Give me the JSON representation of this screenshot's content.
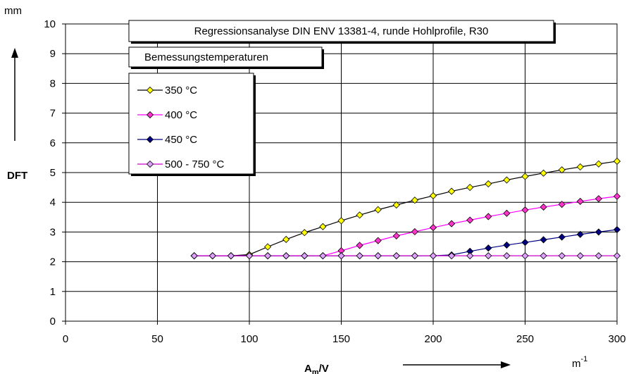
{
  "chart_data": {
    "type": "line",
    "title": "Regressionsanalyse DIN ENV 13381-4, runde Hohlprofile, R30",
    "subtitle": "Bemessungstemperaturen",
    "ylabel": "DFT",
    "y_unit": "mm",
    "xlabel_main": "A",
    "xlabel_sub": "m",
    "xlabel_suffix": "/V",
    "x_unit_base": "m",
    "x_unit_exp": "-1",
    "xlim": [
      0,
      300
    ],
    "ylim": [
      0,
      10
    ],
    "x_ticks": [
      0,
      50,
      100,
      150,
      200,
      250,
      300
    ],
    "y_ticks": [
      0,
      1,
      2,
      3,
      4,
      5,
      6,
      7,
      8,
      9,
      10
    ],
    "grid": true,
    "legend_position": "top-left",
    "series": [
      {
        "name": "350 °C",
        "line_color": "#000000",
        "marker_color": "#ffff00",
        "x": [
          70,
          80,
          90,
          100,
          110,
          120,
          130,
          140,
          150,
          160,
          170,
          180,
          190,
          200,
          210,
          220,
          230,
          240,
          250,
          260,
          270,
          280,
          290,
          300
        ],
        "y": [
          2.2,
          2.2,
          2.2,
          2.24,
          2.5,
          2.75,
          2.98,
          3.18,
          3.38,
          3.57,
          3.75,
          3.91,
          4.07,
          4.22,
          4.37,
          4.5,
          4.62,
          4.75,
          4.87,
          4.98,
          5.09,
          5.19,
          5.29,
          5.38
        ]
      },
      {
        "name": "400 °C",
        "line_color": "#ff00ff",
        "marker_color": "#ff33cc",
        "x": [
          70,
          80,
          90,
          100,
          110,
          120,
          130,
          140,
          150,
          160,
          170,
          180,
          190,
          200,
          210,
          220,
          230,
          240,
          250,
          260,
          270,
          280,
          290,
          300
        ],
        "y": [
          2.2,
          2.2,
          2.2,
          2.2,
          2.2,
          2.2,
          2.2,
          2.2,
          2.37,
          2.55,
          2.71,
          2.87,
          3.01,
          3.15,
          3.28,
          3.4,
          3.52,
          3.63,
          3.74,
          3.84,
          3.93,
          4.03,
          4.12,
          4.2
        ]
      },
      {
        "name": "450 °C",
        "line_color": "#000080",
        "marker_color": "#000080",
        "x": [
          70,
          80,
          90,
          100,
          110,
          120,
          130,
          140,
          150,
          160,
          170,
          180,
          190,
          200,
          210,
          220,
          230,
          240,
          250,
          260,
          270,
          280,
          290,
          300
        ],
        "y": [
          2.2,
          2.2,
          2.2,
          2.2,
          2.2,
          2.2,
          2.2,
          2.2,
          2.2,
          2.2,
          2.2,
          2.2,
          2.2,
          2.2,
          2.23,
          2.35,
          2.46,
          2.56,
          2.65,
          2.74,
          2.83,
          2.92,
          3.0,
          3.08
        ]
      },
      {
        "name": "500 - 750 °C",
        "line_color": "#cc00cc",
        "marker_color": "#dda0ff",
        "x": [
          70,
          80,
          90,
          100,
          110,
          120,
          130,
          140,
          150,
          160,
          170,
          180,
          190,
          200,
          210,
          220,
          230,
          240,
          250,
          260,
          270,
          280,
          290,
          300
        ],
        "y": [
          2.2,
          2.2,
          2.2,
          2.2,
          2.2,
          2.2,
          2.2,
          2.2,
          2.2,
          2.2,
          2.2,
          2.2,
          2.2,
          2.2,
          2.2,
          2.2,
          2.2,
          2.2,
          2.2,
          2.2,
          2.2,
          2.2,
          2.2,
          2.2
        ]
      }
    ]
  }
}
